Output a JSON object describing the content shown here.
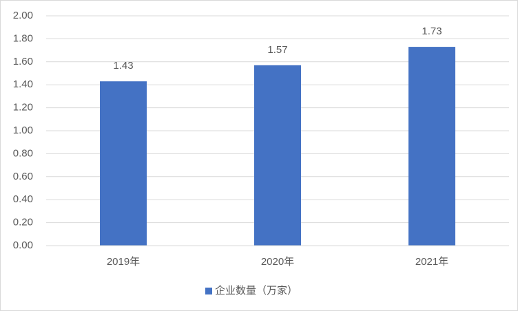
{
  "chart_data": {
    "type": "bar",
    "categories": [
      "2019年",
      "2020年",
      "2021年"
    ],
    "series": [
      {
        "name": "企业数量（万家）",
        "color": "#4472c4",
        "values": [
          1.43,
          1.57,
          1.73
        ]
      }
    ],
    "ylim": [
      0,
      2
    ],
    "yticks": [
      {
        "value": 0,
        "label": "0.00"
      },
      {
        "value": 0.2,
        "label": "0.20"
      },
      {
        "value": 0.4,
        "label": "0.40"
      },
      {
        "value": 0.6,
        "label": "0.60"
      },
      {
        "value": 0.8,
        "label": "0.80"
      },
      {
        "value": 1,
        "label": "1.00"
      },
      {
        "value": 1.2,
        "label": "1.20"
      },
      {
        "value": 1.4,
        "label": "1.40"
      },
      {
        "value": 1.6,
        "label": "1.60"
      },
      {
        "value": 1.8,
        "label": "1.80"
      },
      {
        "value": 2,
        "label": "2.00"
      }
    ],
    "grid": true,
    "legend": "bottom"
  }
}
